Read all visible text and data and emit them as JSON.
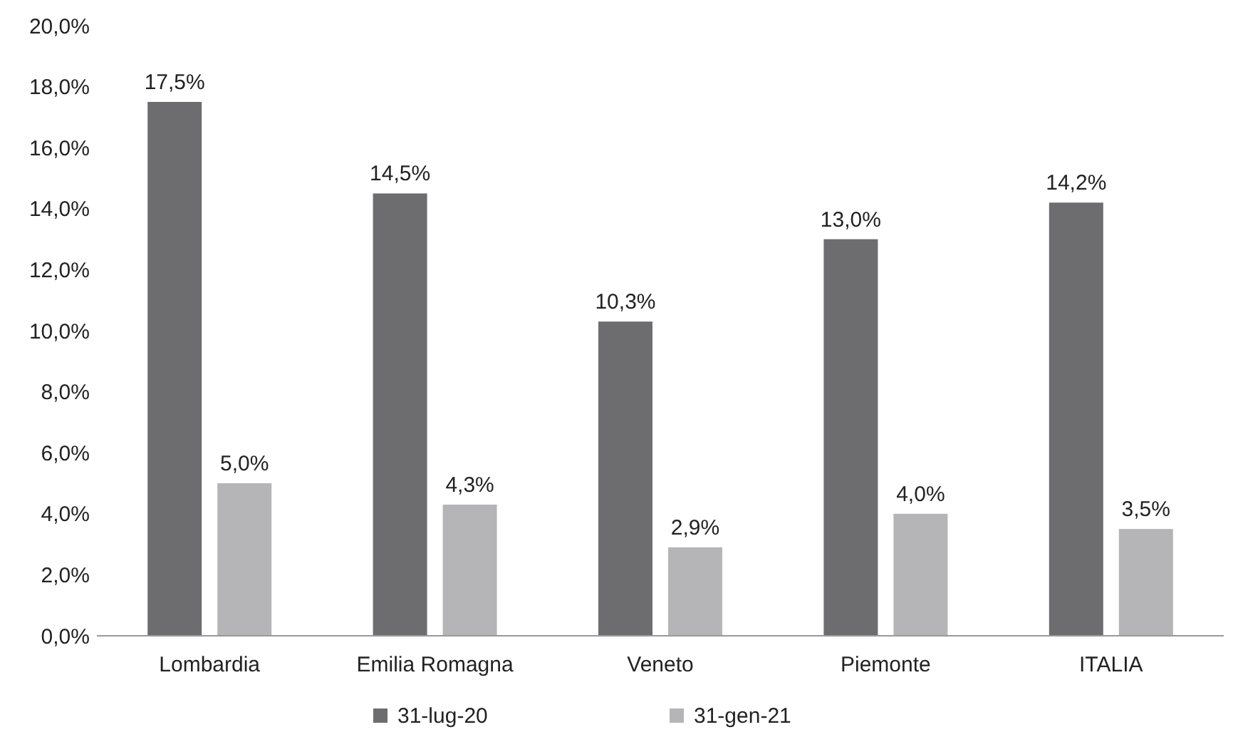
{
  "chart_data": {
    "type": "bar",
    "categories": [
      "Lombardia",
      "Emilia Romagna",
      "Veneto",
      "Piemonte",
      "ITALIA"
    ],
    "series": [
      {
        "name": "31-lug-20",
        "color": "#6d6d70",
        "values": [
          17.5,
          14.5,
          10.3,
          13.0,
          14.2
        ],
        "value_labels": [
          "17,5%",
          "14,5%",
          "10,3%",
          "13,0%",
          "14,2%"
        ]
      },
      {
        "name": "31-gen-21",
        "color": "#b5b5b8",
        "values": [
          5.0,
          4.3,
          2.9,
          4.0,
          3.5
        ],
        "value_labels": [
          "5,0%",
          "4,3%",
          "2,9%",
          "4,0%",
          "3,5%"
        ]
      }
    ],
    "ylim": [
      0,
      20
    ],
    "yticks": [
      {
        "value": 0,
        "label": "0,0%"
      },
      {
        "value": 2,
        "label": "2,0%"
      },
      {
        "value": 4,
        "label": "4,0%"
      },
      {
        "value": 6,
        "label": "6,0%"
      },
      {
        "value": 8,
        "label": "8,0%"
      },
      {
        "value": 10,
        "label": "10,0%"
      },
      {
        "value": 12,
        "label": "12,0%"
      },
      {
        "value": 14,
        "label": "14,0%"
      },
      {
        "value": 16,
        "label": "16,0%"
      },
      {
        "value": 18,
        "label": "18,0%"
      },
      {
        "value": 20,
        "label": "20,0%"
      }
    ],
    "grid": false,
    "legend": "bottom"
  }
}
